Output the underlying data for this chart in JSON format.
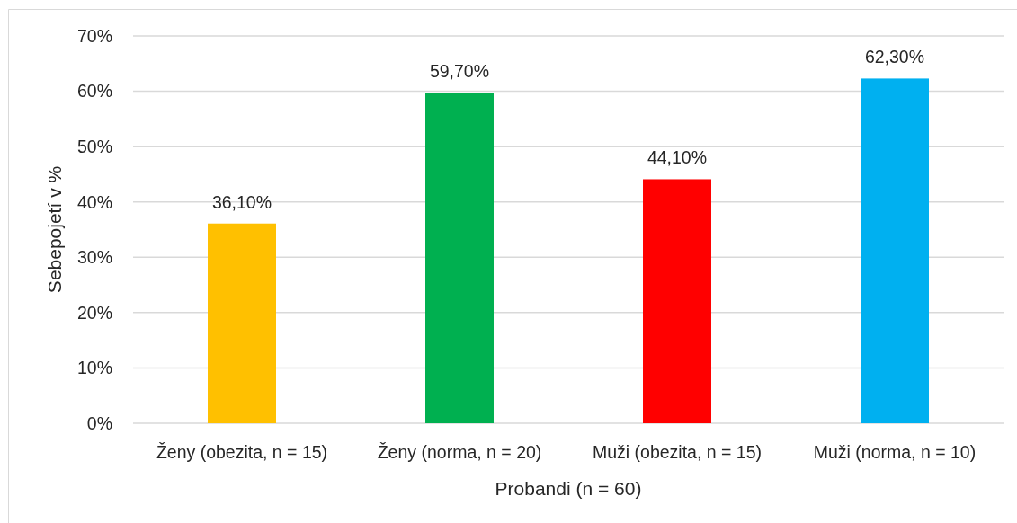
{
  "chart_data": {
    "type": "bar",
    "xlabel": "Probandi (n = 60)",
    "ylabel": "Sebepojetí v %",
    "categories": [
      "Ženy (obezita, n = 15)",
      "Ženy (norma, n = 20)",
      "Muži (obezita, n = 15)",
      "Muži (norma, n = 10)"
    ],
    "values": [
      36.1,
      59.7,
      44.1,
      62.3
    ],
    "colors": [
      "#ffc000",
      "#00b050",
      "#ff0000",
      "#00b0f0"
    ],
    "value_labels": [
      "36,10%",
      "59,70%",
      "44,10%",
      "62,30%"
    ],
    "ylim": [
      0,
      70
    ],
    "yticks": [
      {
        "value": 0,
        "label": "0%"
      },
      {
        "value": 10,
        "label": "10%"
      },
      {
        "value": 20,
        "label": "20%"
      },
      {
        "value": 30,
        "label": "30%"
      },
      {
        "value": 40,
        "label": "40%"
      },
      {
        "value": 50,
        "label": "50%"
      },
      {
        "value": 60,
        "label": "60%"
      },
      {
        "value": 70,
        "label": "70%"
      }
    ],
    "grid": "y"
  }
}
